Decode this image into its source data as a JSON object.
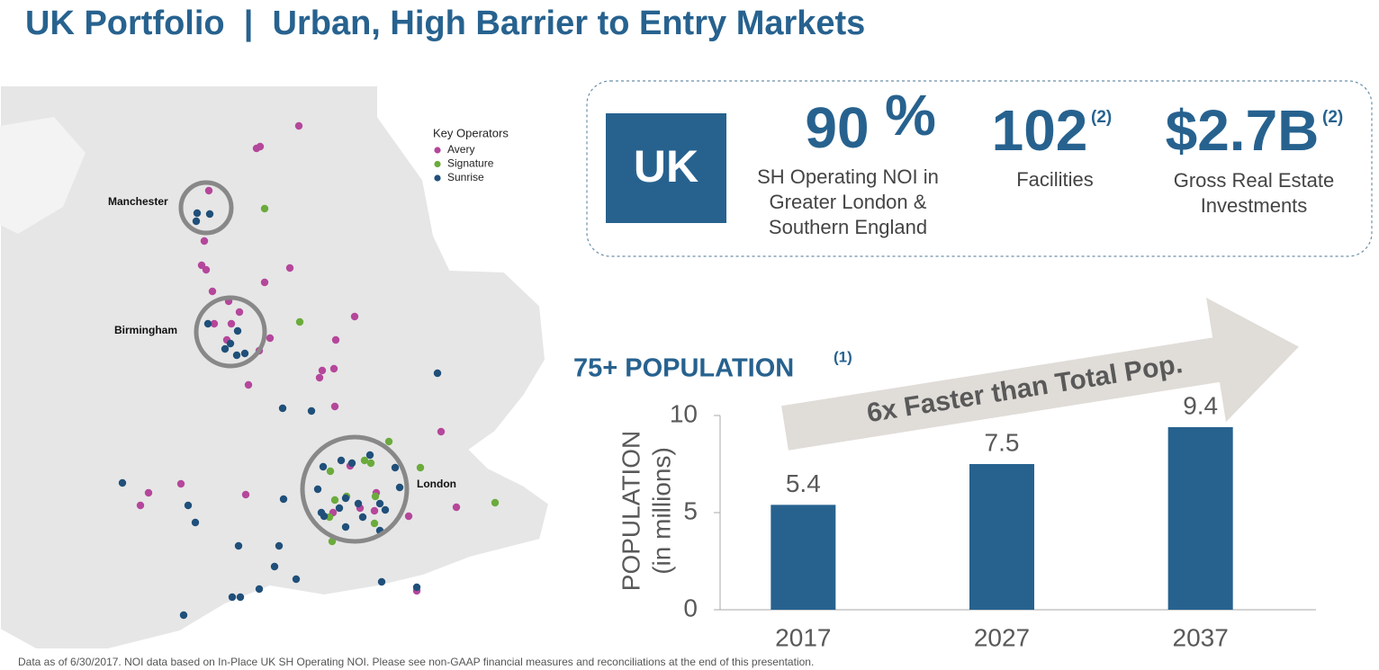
{
  "title": "UK Portfolio  |  Urban, High Barrier to Entry Markets",
  "map": {
    "legend_title": "Key Operators",
    "operators": [
      {
        "name": "Avery",
        "color": "#b5479b"
      },
      {
        "name": "Signature",
        "color": "#6bab3c"
      },
      {
        "name": "Sunrise",
        "color": "#20507a"
      }
    ],
    "cities": [
      "Manchester",
      "Birmingham",
      "London"
    ]
  },
  "stats": {
    "badge": "UK",
    "items": [
      {
        "value": "90",
        "suffix": "%",
        "lines": [
          "SH Operating NOI in",
          "Greater London &",
          "Southern England"
        ]
      },
      {
        "value": "102",
        "note": "(2)",
        "lines": [
          "Facilities"
        ]
      },
      {
        "value": "$2.7B",
        "note": "(2)",
        "lines": [
          "Gross Real Estate",
          "Investments"
        ]
      }
    ]
  },
  "chart_data": {
    "type": "bar",
    "title": "75+ POPULATION",
    "title_note": "(1)",
    "annotation": "6x Faster than Total Pop.",
    "y_label": [
      "POPULATION",
      "(in millions)"
    ],
    "categories": [
      "2017",
      "2027",
      "2037"
    ],
    "values": [
      5.4,
      7.5,
      9.4
    ],
    "color": "#27628f",
    "ylim": [
      0,
      10
    ],
    "yticks": [
      0,
      5,
      10
    ]
  },
  "footnote": "Data as of 6/30/2017. NOI data based on In-Place UK SH Operating NOI. Please see non-GAAP financial measures and reconciliations at the end of this presentation."
}
